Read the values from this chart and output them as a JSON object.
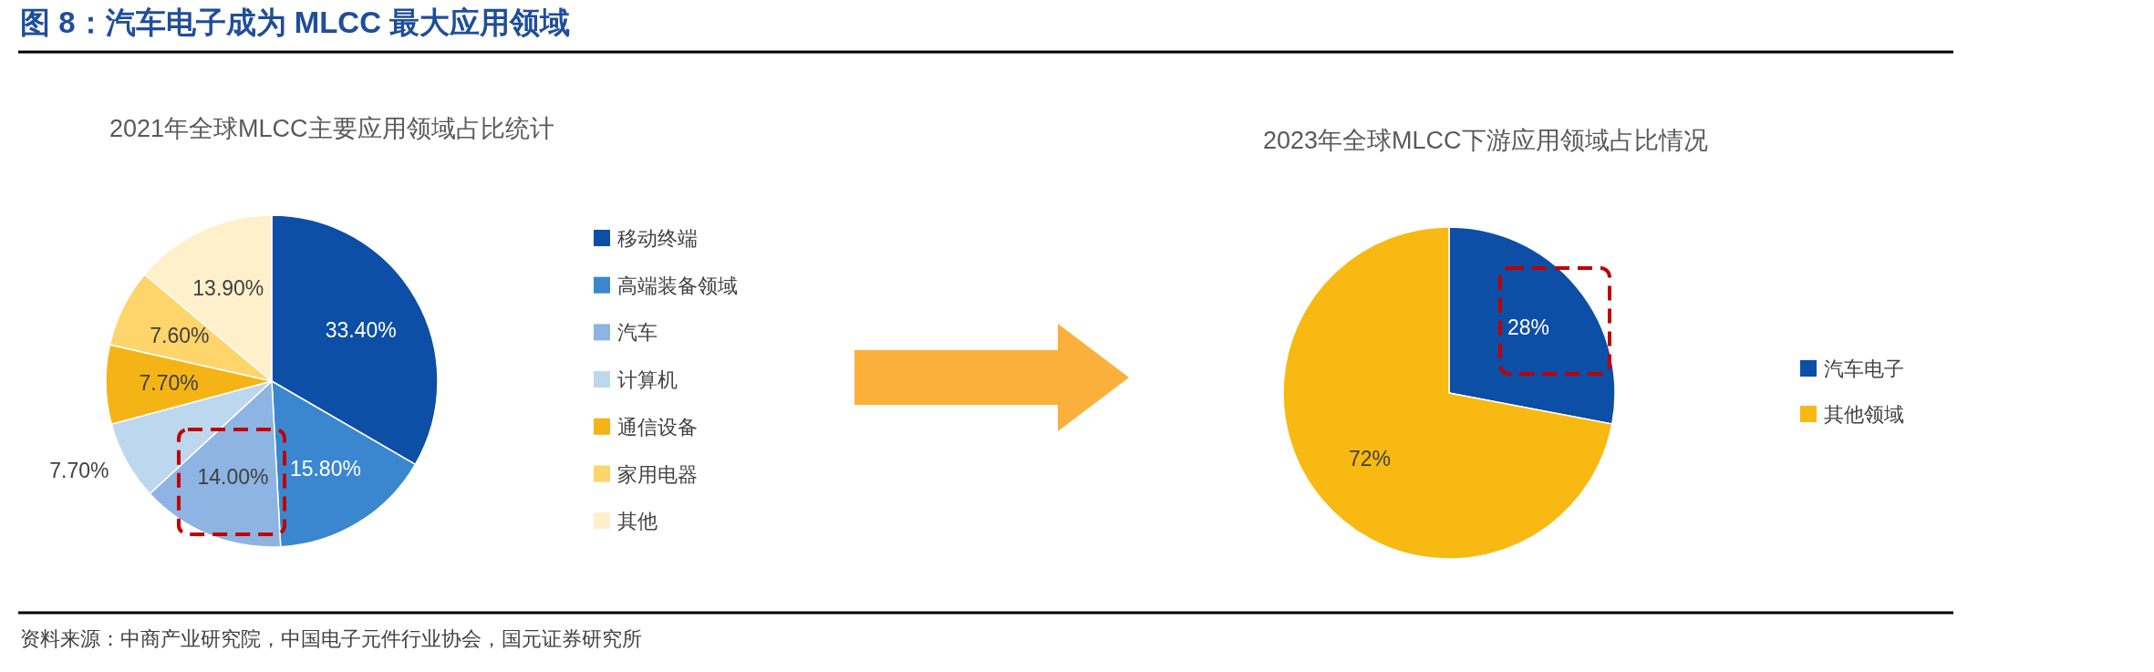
{
  "chart_data": [
    {
      "type": "pie",
      "title": "2021年全球MLCC主要应用领域占比统计",
      "annotations": [
        "图 8：汽车电子成为 MLCC 最大应用领域"
      ],
      "legend": "right",
      "categories": [
        "移动终端",
        "高端装备领域",
        "汽车",
        "计算机",
        "通信设备",
        "家用电器",
        "其他"
      ],
      "values": [
        33.4,
        15.8,
        14.0,
        7.7,
        7.7,
        7.6,
        13.9
      ],
      "value_labels": [
        "33.40%",
        "15.80%",
        "14.00%",
        "7.70%",
        "7.70%",
        "7.60%",
        "13.90%"
      ],
      "colors": [
        "#0d4ea6",
        "#3a87d0",
        "#8db4e2",
        "#bdd7ee",
        "#f5b416",
        "#fdd56a",
        "#fff0cc"
      ]
    },
    {
      "type": "pie",
      "title": "2023年全球MLCC下游应用领域占比情况",
      "annotations": [
        "资料来源：中商产业研究院，中国电子元件行业协会，国元证券研究所"
      ],
      "legend": "right",
      "categories": [
        "汽车电子",
        "其他领域"
      ],
      "values": [
        28,
        72
      ],
      "value_labels": [
        "28%",
        "72%"
      ],
      "colors": [
        "#0d4ea6",
        "#f7b912"
      ]
    }
  ]
}
